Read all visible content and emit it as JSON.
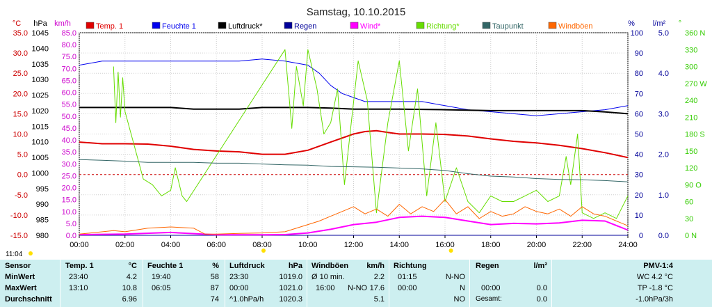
{
  "chart_data": {
    "type": "line",
    "title": "Samstag, 10.10.2015",
    "x_ticks": [
      "00:00",
      "02:00",
      "04:00",
      "06:00",
      "08:00",
      "10:00",
      "12:00",
      "14:00",
      "16:00",
      "18:00",
      "20:00",
      "22:00",
      "24:00"
    ],
    "time_left": "11:04",
    "grid": true,
    "legend_position": "top",
    "axes": {
      "temp": {
        "unit": "°C",
        "color": "#cc0000",
        "min": -15,
        "max": 35,
        "ticks": [
          "35.0",
          "30.0",
          "25.0",
          "20.0",
          "15.0",
          "10.0",
          "5.0",
          "0.0",
          "-5.0",
          "-10.0",
          "-15.0"
        ]
      },
      "hpa": {
        "unit": "hPa",
        "color": "#000000",
        "min": 980,
        "max": 1045,
        "ticks": [
          "1045",
          "1040",
          "1035",
          "1030",
          "1025",
          "1020",
          "1015",
          "1010",
          "1005",
          "1000",
          "995",
          "990",
          "985",
          "980"
        ]
      },
      "kmh": {
        "unit": "km/h",
        "color": "#cc00cc",
        "min": 0,
        "max": 85,
        "ticks": [
          "85.0",
          "80.0",
          "75.0",
          "70.0",
          "65.0",
          "60.0",
          "55.0",
          "50.0",
          "45.0",
          "40.0",
          "35.0",
          "30.0",
          "25.0",
          "20.0",
          "15.0",
          "10.0",
          "5.0",
          "0.0"
        ]
      },
      "pct": {
        "unit": "%",
        "color": "#000099",
        "min": 0,
        "max": 100,
        "ticks": [
          "100",
          "90",
          "80",
          "70",
          "60",
          "50",
          "40",
          "30",
          "20",
          "10",
          "0"
        ]
      },
      "rain": {
        "unit": "l/m²",
        "color": "#000099",
        "min": 0,
        "max": 5,
        "ticks": [
          "5.0",
          "4.0",
          "3.0",
          "2.0",
          "1.0",
          "0.0"
        ]
      },
      "dir": {
        "unit": "°",
        "color": "#33cc00",
        "min": 0,
        "max": 360,
        "ticks": [
          "360 N",
          "330",
          "300",
          "270 W",
          "240",
          "210",
          "180 S",
          "150",
          "120",
          "90 O",
          "60",
          "30",
          "0 N"
        ]
      }
    },
    "series": [
      {
        "name": "Temp. 1",
        "color": "#e00000",
        "axis": "temp",
        "x": [
          0,
          1,
          2,
          3,
          4,
          5,
          6,
          7,
          8,
          9,
          10,
          11,
          12,
          12.5,
          13,
          13.5,
          14,
          15,
          16,
          17,
          18,
          19,
          20,
          21,
          22,
          23,
          24
        ],
        "y": [
          8.0,
          7.6,
          7.6,
          7.5,
          7.0,
          6.2,
          5.8,
          5.6,
          5.0,
          5.0,
          6.0,
          8.0,
          10.0,
          10.6,
          10.8,
          10.4,
          10.0,
          10.0,
          9.9,
          9.5,
          8.8,
          8.2,
          7.8,
          7.2,
          6.4,
          5.4,
          4.2
        ]
      },
      {
        "name": "Feuchte 1",
        "color": "#0000ee",
        "axis": "pct",
        "x": [
          0,
          0.5,
          1,
          2,
          3,
          4,
          5,
          6,
          7,
          8,
          9,
          10,
          10.5,
          11,
          11.5,
          12,
          12.5,
          13,
          14,
          15,
          16,
          17,
          18,
          19,
          20,
          21,
          22,
          23,
          24
        ],
        "y": [
          84,
          85,
          86,
          86,
          86,
          86,
          86,
          86,
          86,
          87,
          86,
          84,
          80,
          74,
          70,
          68,
          66,
          66,
          66,
          66,
          64,
          62,
          61,
          60,
          59,
          60,
          61,
          62,
          64
        ]
      },
      {
        "name": "Luftdruck*",
        "color": "#000000",
        "axis": "hpa",
        "x": [
          0,
          2,
          4,
          5,
          6,
          7,
          8,
          9,
          10,
          11,
          12,
          14,
          16,
          18,
          20,
          22,
          23,
          24
        ],
        "y": [
          1021.0,
          1021.0,
          1021.0,
          1020.5,
          1020.5,
          1020.5,
          1021.0,
          1021.0,
          1021.0,
          1020.8,
          1020.5,
          1020.5,
          1020.3,
          1020.0,
          1020.0,
          1020.0,
          1019.6,
          1019.0
        ]
      },
      {
        "name": "Regen",
        "color": "#000099",
        "axis": "rain",
        "x": [
          0,
          24
        ],
        "y": [
          0,
          0
        ]
      },
      {
        "name": "Wind*",
        "color": "#ff00ff",
        "axis": "kmh",
        "x": [
          0,
          2,
          4,
          6,
          8,
          9,
          10,
          11,
          12,
          13,
          14,
          15,
          16,
          17,
          18,
          19,
          20,
          21,
          22,
          23,
          24
        ],
        "y": [
          0.3,
          0.5,
          1.2,
          0.2,
          0.2,
          0.3,
          1.0,
          2.5,
          4.5,
          5.5,
          7.5,
          8.0,
          7.5,
          6.0,
          4.5,
          5.0,
          4.8,
          5.2,
          6.3,
          6.0,
          2.2
        ]
      },
      {
        "name": "Richtung*",
        "color": "#66dd00",
        "axis": "dir",
        "x": [
          1.5,
          1.6,
          1.7,
          1.8,
          1.9,
          2.0,
          2.8,
          3.2,
          3.6,
          4.0,
          4.2,
          4.5,
          4.7,
          9.0,
          9.3,
          9.5,
          9.8,
          10.0,
          10.4,
          10.7,
          11.0,
          11.3,
          11.6,
          11.9,
          12.2,
          12.6,
          13.0,
          13.5,
          14.0,
          14.4,
          14.8,
          15.2,
          15.6,
          16.0,
          16.5,
          17.0,
          17.5,
          18.0,
          18.5,
          19.0,
          19.5,
          20.0,
          20.5,
          21.0,
          21.3,
          21.5,
          21.8,
          22.0,
          22.5,
          23.0,
          23.5,
          24.0
        ],
        "y": [
          300,
          200,
          290,
          210,
          280,
          220,
          100,
          90,
          70,
          80,
          120,
          70,
          60,
          330,
          190,
          300,
          230,
          330,
          260,
          180,
          200,
          260,
          90,
          200,
          310,
          240,
          40,
          200,
          310,
          150,
          260,
          70,
          200,
          60,
          120,
          60,
          40,
          70,
          60,
          60,
          70,
          80,
          60,
          70,
          140,
          90,
          180,
          40,
          30,
          40,
          30,
          70
        ]
      },
      {
        "name": "Taupunkt",
        "color": "#336666",
        "axis": "temp",
        "x": [
          0,
          1,
          2,
          3,
          4,
          5,
          6,
          7,
          8,
          9,
          10,
          11,
          12,
          13,
          14,
          15,
          16,
          17,
          18,
          19,
          20,
          21,
          22,
          23,
          24
        ],
        "y": [
          3.7,
          3.5,
          3.3,
          3.0,
          3.0,
          3.0,
          2.8,
          2.8,
          2.6,
          2.4,
          2.3,
          2.0,
          1.9,
          1.8,
          1.6,
          1.4,
          1.0,
          0.2,
          -0.4,
          -0.6,
          -1.0,
          -1.2,
          -1.3,
          -1.5,
          -1.8
        ]
      },
      {
        "name": "Windböen",
        "color": "#ff6600",
        "axis": "kmh",
        "x": [
          0,
          1.5,
          2,
          3,
          4,
          5,
          5.5,
          6,
          7,
          8,
          9,
          10,
          10.5,
          11,
          11.5,
          12,
          12.5,
          13,
          13.5,
          14,
          14.5,
          15,
          15.5,
          16,
          16.5,
          17,
          17.5,
          18,
          18.5,
          19,
          19.5,
          20,
          20.5,
          21,
          21.5,
          22,
          22.5,
          23,
          23.5,
          24
        ],
        "y": [
          0.5,
          2.0,
          1.5,
          3.0,
          3.5,
          3.0,
          0.5,
          0.5,
          0.8,
          1.0,
          1.5,
          4.5,
          6.0,
          8.0,
          10.0,
          12.0,
          9.0,
          11.0,
          8.0,
          13.0,
          9.0,
          12.0,
          10.0,
          15.0,
          9.0,
          12.0,
          7.0,
          10.0,
          8.0,
          9.0,
          12.0,
          10.0,
          9.0,
          11.0,
          8.0,
          12.0,
          9.0,
          8.0,
          6.0,
          4.0
        ]
      }
    ]
  },
  "stats": {
    "sensor": {
      "header": "Sensor",
      "rows": [
        "MinWert",
        "MaxWert",
        "Durchschnitt"
      ]
    },
    "temp": {
      "header": "Temp. 1",
      "unit": "°C",
      "rows": [
        {
          "time": "23:40",
          "value": "4.2"
        },
        {
          "time": "13:10",
          "value": "10.8"
        },
        {
          "time": "",
          "value": "6.96"
        }
      ]
    },
    "feuchte": {
      "header": "Feuchte 1",
      "unit": "%",
      "rows": [
        {
          "time": "19:40",
          "value": "58"
        },
        {
          "time": "06:05",
          "value": "87"
        },
        {
          "time": "",
          "value": "74"
        }
      ]
    },
    "luftdruck": {
      "header": "Luftdruck",
      "unit": "hPa",
      "rows": [
        {
          "time": "23:30",
          "value": "1019.0"
        },
        {
          "time": "00:00",
          "value": "1021.0"
        },
        {
          "time": "^1.0hPa/h",
          "value": "1020.3"
        }
      ]
    },
    "windboen": {
      "header": "Windböen",
      "unit": "km/h",
      "rows": [
        {
          "time": "Ø 10 min.",
          "value": "2.2"
        },
        {
          "time": "16:00",
          "dir": "N-NO",
          "value": "17.6"
        },
        {
          "time": "",
          "value": "5.1"
        }
      ]
    },
    "richtung": {
      "header": "Richtung",
      "rows": [
        {
          "time": "01:15",
          "value": "N-NO"
        },
        {
          "time": "00:00",
          "value": "N"
        },
        {
          "time": "",
          "value": "NO"
        }
      ]
    },
    "regen": {
      "header": "Regen",
      "unit": "l/m²",
      "rows": [
        {
          "time": "",
          "value": ""
        },
        {
          "time": "00:00",
          "value": "0.0"
        },
        {
          "time": "Gesamt:",
          "value": "0.0"
        }
      ]
    },
    "pmv": {
      "header": "PMV-1:4",
      "rows": [
        "WC 4.2 °C",
        "TP -1.8 °C",
        "-1.0hPa/3h"
      ]
    }
  }
}
